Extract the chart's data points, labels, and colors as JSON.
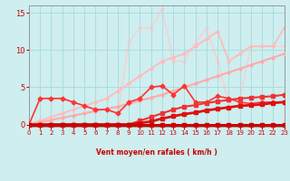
{
  "xlabel": "Vent moyen/en rafales ( km/h )",
  "xlim": [
    0,
    23
  ],
  "ylim": [
    -0.3,
    16
  ],
  "yticks": [
    0,
    5,
    10,
    15
  ],
  "xticks": [
    0,
    1,
    2,
    3,
    4,
    5,
    6,
    7,
    8,
    9,
    10,
    11,
    12,
    13,
    14,
    15,
    16,
    17,
    18,
    19,
    20,
    21,
    22,
    23
  ],
  "bg_color": "#ceeef0",
  "grid_color": "#aadddd",
  "lines": [
    {
      "x": [
        0,
        1,
        2,
        3,
        4,
        5,
        6,
        7,
        8,
        9,
        10,
        11,
        12,
        13,
        14,
        15,
        16,
        17,
        18,
        19,
        20,
        21,
        22,
        23
      ],
      "y": [
        0,
        0,
        0,
        0,
        0,
        0,
        0,
        0,
        0,
        0,
        0,
        0,
        0,
        0,
        0,
        0,
        0,
        0,
        0,
        0,
        0,
        0,
        0,
        0
      ],
      "color": "#cc0000",
      "lw": 2.2,
      "marker": "s",
      "ms": 2.5
    },
    {
      "x": [
        0,
        1,
        2,
        3,
        4,
        5,
        6,
        7,
        8,
        9,
        10,
        11,
        12,
        13,
        14,
        15,
        16,
        17,
        18,
        19,
        20,
        21,
        22,
        23
      ],
      "y": [
        0,
        0,
        0,
        0,
        0,
        0,
        0,
        0,
        0,
        0,
        0.2,
        0.4,
        0.8,
        1.1,
        1.4,
        1.6,
        1.9,
        2.1,
        2.3,
        2.5,
        2.6,
        2.7,
        2.9,
        3.0
      ],
      "color": "#dd1111",
      "lw": 2.0,
      "marker": "s",
      "ms": 2.5
    },
    {
      "x": [
        0,
        1,
        2,
        3,
        4,
        5,
        6,
        7,
        8,
        9,
        10,
        11,
        12,
        13,
        14,
        15,
        16,
        17,
        18,
        19,
        20,
        21,
        22,
        23
      ],
      "y": [
        0,
        0,
        0,
        0,
        0,
        0,
        0,
        0,
        0,
        0,
        0.5,
        1.0,
        1.5,
        2.0,
        2.4,
        2.6,
        2.9,
        3.1,
        3.3,
        3.5,
        3.6,
        3.7,
        3.8,
        4.0
      ],
      "color": "#ee3333",
      "lw": 1.5,
      "marker": "s",
      "ms": 2.2
    },
    {
      "x": [
        0,
        1,
        2,
        3,
        4,
        5,
        6,
        7,
        8,
        9,
        10,
        11,
        12,
        13,
        14,
        15,
        16,
        17,
        18,
        19,
        20,
        21,
        22,
        23
      ],
      "y": [
        0,
        3.5,
        3.5,
        3.5,
        3.0,
        2.5,
        2.0,
        2.0,
        1.5,
        3.0,
        3.5,
        5.0,
        5.2,
        4.0,
        5.2,
        3.0,
        3.0,
        3.8,
        3.5,
        3.0,
        2.8,
        3.0,
        3.0,
        3.0
      ],
      "color": "#ff3333",
      "lw": 1.2,
      "marker": "D",
      "ms": 2.5
    },
    {
      "x": [
        0,
        1,
        2,
        3,
        4,
        5,
        6,
        7,
        8,
        9,
        10,
        11,
        12,
        13,
        14,
        15,
        16,
        17,
        18,
        19,
        20,
        21,
        22,
        23
      ],
      "y": [
        0,
        0.3,
        0.6,
        0.9,
        1.2,
        1.5,
        1.8,
        2.1,
        2.4,
        2.8,
        3.2,
        3.6,
        4.0,
        4.5,
        5.0,
        5.5,
        6.0,
        6.5,
        7.0,
        7.5,
        8.0,
        8.5,
        9.0,
        9.5
      ],
      "color": "#ffaaaa",
      "lw": 1.5,
      "marker": "D",
      "ms": 1.8
    },
    {
      "x": [
        0,
        1,
        2,
        3,
        4,
        5,
        6,
        7,
        8,
        9,
        10,
        11,
        12,
        13,
        14,
        15,
        16,
        17,
        18,
        19,
        20,
        21,
        22,
        23
      ],
      "y": [
        0,
        0.5,
        1.0,
        1.5,
        2.0,
        2.5,
        3.0,
        3.5,
        4.5,
        5.5,
        6.5,
        7.5,
        8.5,
        9.0,
        9.5,
        10.5,
        11.5,
        12.5,
        8.5,
        9.5,
        10.5,
        10.5,
        10.5,
        13.0
      ],
      "color": "#ffbbbb",
      "lw": 1.3,
      "marker": "D",
      "ms": 1.8
    },
    {
      "x": [
        0,
        1,
        2,
        3,
        4,
        5,
        6,
        7,
        8,
        9,
        10,
        11,
        12,
        13,
        14,
        15,
        16,
        17,
        18,
        19,
        20,
        21,
        22,
        23
      ],
      "y": [
        0,
        3.5,
        3.5,
        3.3,
        3.0,
        2.5,
        2.0,
        2.0,
        1.5,
        11.0,
        13.0,
        13.0,
        15.5,
        8.5,
        8.5,
        11.0,
        13.0,
        8.5,
        3.0,
        3.5,
        10.5,
        10.5,
        10.5,
        10.5
      ],
      "color": "#ffcccc",
      "lw": 1.0,
      "marker": "D",
      "ms": 1.8
    }
  ]
}
